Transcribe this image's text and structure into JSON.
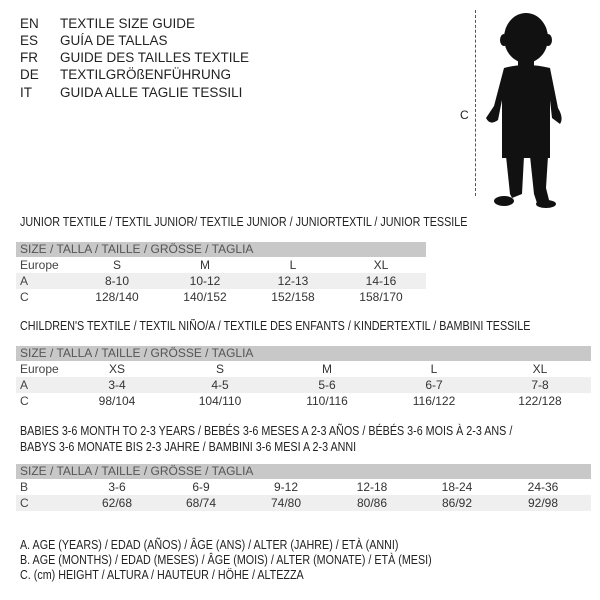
{
  "title_lines": [
    {
      "code": "EN",
      "text": "TEXTILE SIZE GUIDE"
    },
    {
      "code": "ES",
      "text": "GUÍA DE TALLAS"
    },
    {
      "code": "FR",
      "text": "GUIDE DES TAILLES TEXTILE"
    },
    {
      "code": "DE",
      "text": "TEXTILGRÖßENFÜHRUNG"
    },
    {
      "code": "IT",
      "text": "GUIDA ALLE TAGLIE TESSILI"
    }
  ],
  "figure": {
    "label": "C",
    "icon": "child-silhouette"
  },
  "size_header": "SIZE / TALLA / TAILLE / GRÖSSE / TAGLIA",
  "junior": {
    "title": "JUNIOR TEXTILE / TEXTIL JUNIOR/ TEXTILE JUNIOR / JUNIORTEXTIL / JUNIOR TESSILE",
    "rows": [
      {
        "label": "Europe",
        "values": [
          "S",
          "M",
          "L",
          "XL"
        ]
      },
      {
        "label": "A",
        "values": [
          "8-10",
          "10-12",
          "12-13",
          "14-16"
        ]
      },
      {
        "label": "C",
        "values": [
          "128/140",
          "140/152",
          "152/158",
          "158/170"
        ]
      }
    ]
  },
  "children": {
    "title": "CHILDREN'S TEXTILE / TEXTIL NIÑO/A / TEXTILE DES ENFANTS / KINDERTEXTIL / BAMBINI TESSILE",
    "rows": [
      {
        "label": "Europe",
        "values": [
          "XS",
          "S",
          "M",
          "L",
          "XL"
        ]
      },
      {
        "label": "A",
        "values": [
          "3-4",
          "4-5",
          "5-6",
          "6-7",
          "7-8"
        ]
      },
      {
        "label": "C",
        "values": [
          "98/104",
          "104/110",
          "110/116",
          "116/122",
          "122/128"
        ]
      }
    ]
  },
  "babies": {
    "title_lines": [
      "BABIES 3-6 MONTH TO 2-3 YEARS / BEBÉS 3-6 MESES A 2-3 AÑOS / BÉBÉS 3-6 MOIS À 2-3 ANS /",
      "BABYS 3-6 MONATE BIS 2-3 JAHRE / BAMBINI 3-6 MESI A 2-3 ANNI"
    ],
    "rows": [
      {
        "label": "B",
        "values": [
          "3-6",
          "6-9",
          "9-12",
          "12-18",
          "18-24",
          "24-36"
        ]
      },
      {
        "label": "C",
        "values": [
          "62/68",
          "68/74",
          "74/80",
          "80/86",
          "86/92",
          "92/98"
        ]
      }
    ]
  },
  "legend": [
    "A. AGE (YEARS) / EDAD (AÑOS) / ÂGE (ANS) / ALTER (JAHRE) / ETÀ (ANNI)",
    "B. AGE (MONTHS) / EDAD (MESES) / ÂGE (MOIS) / ALTER (MONATE) / ETÀ (MESI)",
    "C. (cm) HEIGHT / ALTURA / HAUTEUR / HÖHE / ALTEZZA"
  ]
}
